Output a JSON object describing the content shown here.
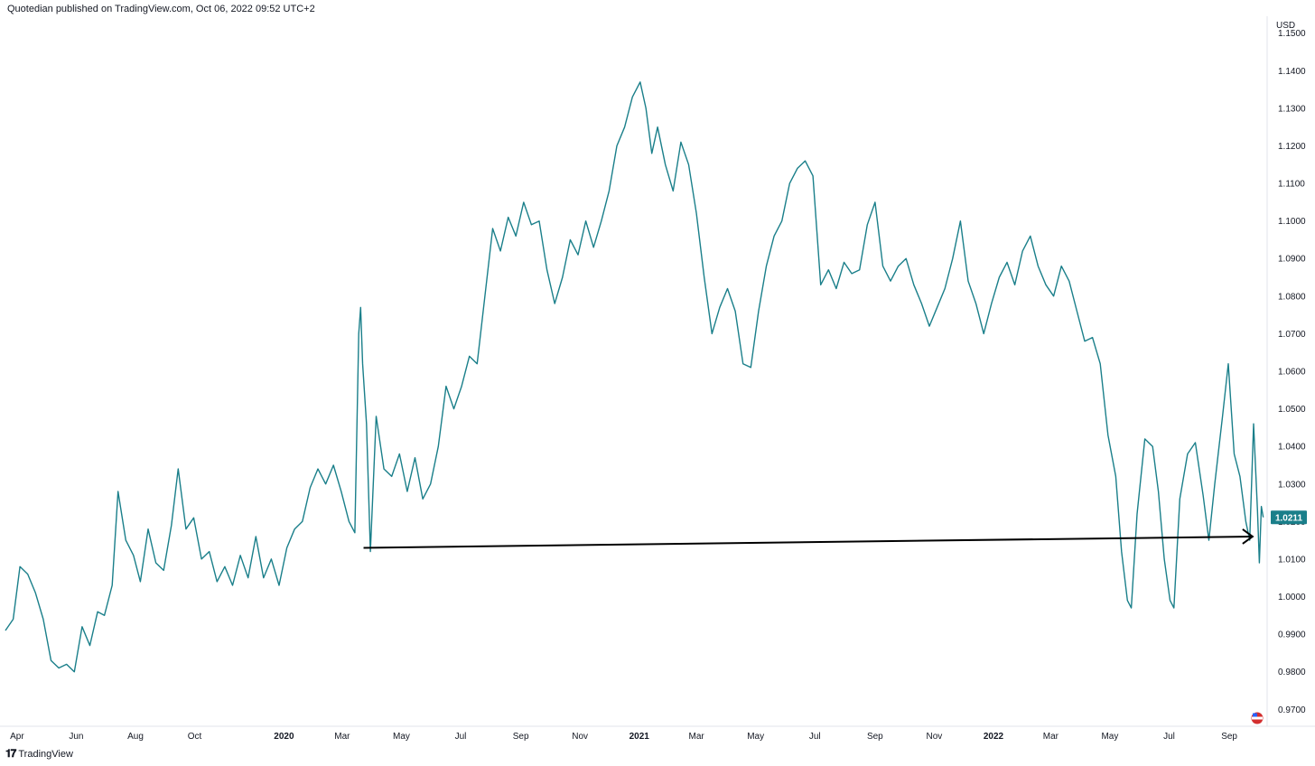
{
  "header": {
    "publisher_line": "Quotedian published on TradingView.com, Oct 06, 2022 09:52 UTC+2"
  },
  "footer": {
    "brand": "TradingView",
    "brand_icon": "tradingview-logo-icon"
  },
  "colors": {
    "series": "#1a7f8a",
    "badge_bg": "#1a7f8a",
    "arrow": "#000000",
    "axis_text": "#131722",
    "flag_red": "#d32f2f",
    "flag_blue": "#2962ff"
  },
  "chart_data": {
    "type": "line",
    "title": "",
    "currency_label": "USD",
    "ylim": [
      0.9655,
      1.1545
    ],
    "yticks": [
      "1.1500",
      "1.1400",
      "1.1300",
      "1.1200",
      "1.1100",
      "1.1000",
      "1.0900",
      "1.0800",
      "1.0700",
      "1.0600",
      "1.0500",
      "1.0400",
      "1.0300",
      "1.0200",
      "1.0100",
      "1.0000",
      "0.9900",
      "0.9800",
      "0.9700"
    ],
    "xlim": [
      "2019-03-20",
      "2022-10-10"
    ],
    "xticks": [
      {
        "label": "Apr",
        "date": "2019-04-01",
        "bold": false
      },
      {
        "label": "Jun",
        "date": "2019-06-01",
        "bold": false
      },
      {
        "label": "Aug",
        "date": "2019-08-01",
        "bold": false
      },
      {
        "label": "Oct",
        "date": "2019-10-01",
        "bold": false
      },
      {
        "label": "2020",
        "date": "2020-01-01",
        "bold": true
      },
      {
        "label": "Mar",
        "date": "2020-03-01",
        "bold": false
      },
      {
        "label": "May",
        "date": "2020-05-01",
        "bold": false
      },
      {
        "label": "Jul",
        "date": "2020-07-01",
        "bold": false
      },
      {
        "label": "Sep",
        "date": "2020-09-01",
        "bold": false
      },
      {
        "label": "Nov",
        "date": "2020-11-01",
        "bold": false
      },
      {
        "label": "2021",
        "date": "2021-01-01",
        "bold": true
      },
      {
        "label": "Mar",
        "date": "2021-03-01",
        "bold": false
      },
      {
        "label": "May",
        "date": "2021-05-01",
        "bold": false
      },
      {
        "label": "Jul",
        "date": "2021-07-01",
        "bold": false
      },
      {
        "label": "Sep",
        "date": "2021-09-01",
        "bold": false
      },
      {
        "label": "Nov",
        "date": "2021-11-01",
        "bold": false
      },
      {
        "label": "2022",
        "date": "2022-01-01",
        "bold": true
      },
      {
        "label": "Mar",
        "date": "2022-03-01",
        "bold": false
      },
      {
        "label": "May",
        "date": "2022-05-01",
        "bold": false
      },
      {
        "label": "Jul",
        "date": "2022-07-01",
        "bold": false
      },
      {
        "label": "Sep",
        "date": "2022-09-01",
        "bold": false
      }
    ],
    "last_value_label": "1.0211",
    "last_value": 1.0211,
    "grid": false,
    "annotation_arrow": {
      "from": {
        "date": "2020-03-23",
        "value": 1.013
      },
      "to": {
        "date": "2022-09-25",
        "value": 1.016
      }
    },
    "series": [
      {
        "color": "#1a7f8a",
        "points": [
          [
            "2019-03-20",
            0.991
          ],
          [
            "2019-03-28",
            0.994
          ],
          [
            "2019-04-04",
            1.008
          ],
          [
            "2019-04-12",
            1.006
          ],
          [
            "2019-04-20",
            1.001
          ],
          [
            "2019-04-28",
            0.994
          ],
          [
            "2019-05-06",
            0.983
          ],
          [
            "2019-05-14",
            0.981
          ],
          [
            "2019-05-22",
            0.982
          ],
          [
            "2019-05-30",
            0.98
          ],
          [
            "2019-06-07",
            0.992
          ],
          [
            "2019-06-15",
            0.987
          ],
          [
            "2019-06-23",
            0.996
          ],
          [
            "2019-06-30",
            0.995
          ],
          [
            "2019-07-08",
            1.003
          ],
          [
            "2019-07-14",
            1.028
          ],
          [
            "2019-07-22",
            1.015
          ],
          [
            "2019-07-30",
            1.011
          ],
          [
            "2019-08-06",
            1.004
          ],
          [
            "2019-08-14",
            1.018
          ],
          [
            "2019-08-22",
            1.009
          ],
          [
            "2019-08-30",
            1.007
          ],
          [
            "2019-09-07",
            1.019
          ],
          [
            "2019-09-14",
            1.034
          ],
          [
            "2019-09-22",
            1.018
          ],
          [
            "2019-09-30",
            1.021
          ],
          [
            "2019-10-08",
            1.01
          ],
          [
            "2019-10-16",
            1.012
          ],
          [
            "2019-10-24",
            1.004
          ],
          [
            "2019-11-01",
            1.008
          ],
          [
            "2019-11-09",
            1.003
          ],
          [
            "2019-11-17",
            1.011
          ],
          [
            "2019-11-25",
            1.005
          ],
          [
            "2019-12-03",
            1.016
          ],
          [
            "2019-12-11",
            1.005
          ],
          [
            "2019-12-19",
            1.01
          ],
          [
            "2019-12-27",
            1.003
          ],
          [
            "2020-01-04",
            1.013
          ],
          [
            "2020-01-12",
            1.018
          ],
          [
            "2020-01-20",
            1.02
          ],
          [
            "2020-01-28",
            1.029
          ],
          [
            "2020-02-05",
            1.034
          ],
          [
            "2020-02-13",
            1.03
          ],
          [
            "2020-02-21",
            1.035
          ],
          [
            "2020-02-29",
            1.028
          ],
          [
            "2020-03-08",
            1.02
          ],
          [
            "2020-03-14",
            1.017
          ],
          [
            "2020-03-18",
            1.07
          ],
          [
            "2020-03-20",
            1.077
          ],
          [
            "2020-03-22",
            1.062
          ],
          [
            "2020-03-26",
            1.046
          ],
          [
            "2020-03-30",
            1.012
          ],
          [
            "2020-04-05",
            1.048
          ],
          [
            "2020-04-13",
            1.034
          ],
          [
            "2020-04-21",
            1.032
          ],
          [
            "2020-04-29",
            1.038
          ],
          [
            "2020-05-07",
            1.028
          ],
          [
            "2020-05-15",
            1.037
          ],
          [
            "2020-05-23",
            1.026
          ],
          [
            "2020-05-31",
            1.03
          ],
          [
            "2020-06-08",
            1.04
          ],
          [
            "2020-06-16",
            1.056
          ],
          [
            "2020-06-24",
            1.05
          ],
          [
            "2020-07-02",
            1.056
          ],
          [
            "2020-07-10",
            1.064
          ],
          [
            "2020-07-18",
            1.062
          ],
          [
            "2020-07-26",
            1.08
          ],
          [
            "2020-08-03",
            1.098
          ],
          [
            "2020-08-11",
            1.092
          ],
          [
            "2020-08-19",
            1.101
          ],
          [
            "2020-08-27",
            1.096
          ],
          [
            "2020-09-04",
            1.105
          ],
          [
            "2020-09-12",
            1.099
          ],
          [
            "2020-09-20",
            1.1
          ],
          [
            "2020-09-28",
            1.087
          ],
          [
            "2020-10-06",
            1.078
          ],
          [
            "2020-10-14",
            1.085
          ],
          [
            "2020-10-22",
            1.095
          ],
          [
            "2020-10-30",
            1.091
          ],
          [
            "2020-11-07",
            1.1
          ],
          [
            "2020-11-15",
            1.093
          ],
          [
            "2020-11-23",
            1.1
          ],
          [
            "2020-12-01",
            1.108
          ],
          [
            "2020-12-09",
            1.12
          ],
          [
            "2020-12-17",
            1.125
          ],
          [
            "2020-12-25",
            1.133
          ],
          [
            "2021-01-02",
            1.137
          ],
          [
            "2021-01-08",
            1.13
          ],
          [
            "2021-01-14",
            1.118
          ],
          [
            "2021-01-20",
            1.125
          ],
          [
            "2021-01-28",
            1.115
          ],
          [
            "2021-02-05",
            1.108
          ],
          [
            "2021-02-13",
            1.121
          ],
          [
            "2021-02-21",
            1.115
          ],
          [
            "2021-03-01",
            1.102
          ],
          [
            "2021-03-09",
            1.085
          ],
          [
            "2021-03-17",
            1.07
          ],
          [
            "2021-03-25",
            1.077
          ],
          [
            "2021-04-02",
            1.082
          ],
          [
            "2021-04-10",
            1.076
          ],
          [
            "2021-04-18",
            1.062
          ],
          [
            "2021-04-26",
            1.061
          ],
          [
            "2021-05-04",
            1.076
          ],
          [
            "2021-05-12",
            1.088
          ],
          [
            "2021-05-20",
            1.096
          ],
          [
            "2021-05-28",
            1.1
          ],
          [
            "2021-06-05",
            1.11
          ],
          [
            "2021-06-13",
            1.114
          ],
          [
            "2021-06-21",
            1.116
          ],
          [
            "2021-06-29",
            1.112
          ],
          [
            "2021-07-07",
            1.083
          ],
          [
            "2021-07-15",
            1.087
          ],
          [
            "2021-07-23",
            1.082
          ],
          [
            "2021-07-31",
            1.089
          ],
          [
            "2021-08-08",
            1.086
          ],
          [
            "2021-08-16",
            1.087
          ],
          [
            "2021-08-24",
            1.099
          ],
          [
            "2021-09-01",
            1.105
          ],
          [
            "2021-09-09",
            1.088
          ],
          [
            "2021-09-17",
            1.084
          ],
          [
            "2021-09-25",
            1.088
          ],
          [
            "2021-10-03",
            1.09
          ],
          [
            "2021-10-11",
            1.083
          ],
          [
            "2021-10-19",
            1.078
          ],
          [
            "2021-10-27",
            1.072
          ],
          [
            "2021-11-04",
            1.077
          ],
          [
            "2021-11-12",
            1.082
          ],
          [
            "2021-11-20",
            1.09
          ],
          [
            "2021-11-28",
            1.1
          ],
          [
            "2021-12-06",
            1.084
          ],
          [
            "2021-12-14",
            1.078
          ],
          [
            "2021-12-22",
            1.07
          ],
          [
            "2021-12-30",
            1.078
          ],
          [
            "2022-01-07",
            1.085
          ],
          [
            "2022-01-15",
            1.089
          ],
          [
            "2022-01-23",
            1.083
          ],
          [
            "2022-01-31",
            1.092
          ],
          [
            "2022-02-08",
            1.096
          ],
          [
            "2022-02-16",
            1.088
          ],
          [
            "2022-02-24",
            1.083
          ],
          [
            "2022-03-04",
            1.08
          ],
          [
            "2022-03-12",
            1.088
          ],
          [
            "2022-03-20",
            1.084
          ],
          [
            "2022-03-28",
            1.076
          ],
          [
            "2022-04-05",
            1.068
          ],
          [
            "2022-04-13",
            1.069
          ],
          [
            "2022-04-21",
            1.062
          ],
          [
            "2022-04-29",
            1.043
          ],
          [
            "2022-05-07",
            1.032
          ],
          [
            "2022-05-13",
            1.012
          ],
          [
            "2022-05-19",
            0.999
          ],
          [
            "2022-05-23",
            0.997
          ],
          [
            "2022-05-29",
            1.022
          ],
          [
            "2022-06-06",
            1.042
          ],
          [
            "2022-06-14",
            1.04
          ],
          [
            "2022-06-20",
            1.028
          ],
          [
            "2022-06-26",
            1.01
          ],
          [
            "2022-07-02",
            0.999
          ],
          [
            "2022-07-06",
            0.997
          ],
          [
            "2022-07-12",
            1.026
          ],
          [
            "2022-07-20",
            1.038
          ],
          [
            "2022-07-28",
            1.041
          ],
          [
            "2022-08-05",
            1.027
          ],
          [
            "2022-08-11",
            1.015
          ],
          [
            "2022-08-17",
            1.03
          ],
          [
            "2022-08-25",
            1.048
          ],
          [
            "2022-08-31",
            1.062
          ],
          [
            "2022-09-06",
            1.038
          ],
          [
            "2022-09-12",
            1.032
          ],
          [
            "2022-09-18",
            1.02
          ],
          [
            "2022-09-22",
            1.015
          ],
          [
            "2022-09-26",
            1.046
          ],
          [
            "2022-09-30",
            1.023
          ],
          [
            "2022-10-02",
            1.009
          ],
          [
            "2022-10-04",
            1.024
          ],
          [
            "2022-10-06",
            1.0211
          ]
        ]
      }
    ]
  }
}
